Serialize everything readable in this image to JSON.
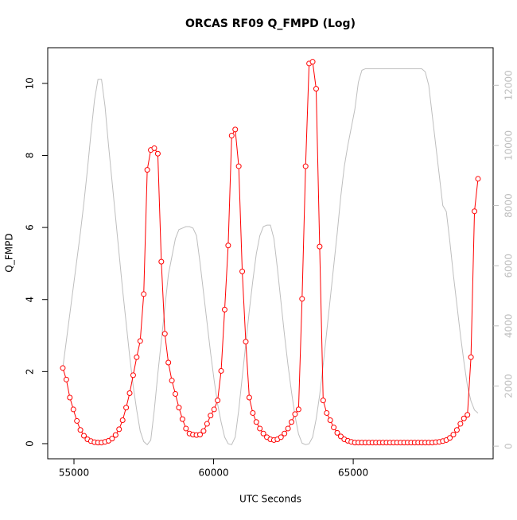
{
  "chart_data": {
    "type": "line",
    "title": "ORCAS RF09 Q_FMPD (Log)",
    "x_label": "UTC Seconds",
    "y_label": "Q_FMPD",
    "x": [
      54600,
      54726,
      54852,
      54978,
      55104,
      55230,
      55356,
      55482,
      55608,
      55734,
      55860,
      55986,
      56112,
      56238,
      56364,
      56490,
      56616,
      56742,
      56868,
      56994,
      57120,
      57246,
      57372,
      57498,
      57624,
      57750,
      57876,
      58002,
      58128,
      58254,
      58380,
      58506,
      58632,
      58758,
      58884,
      59010,
      59136,
      59262,
      59388,
      59514,
      59640,
      59766,
      59892,
      60018,
      60144,
      60270,
      60396,
      60522,
      60648,
      60774,
      60900,
      61026,
      61152,
      61278,
      61404,
      61530,
      61656,
      61782,
      61908,
      62034,
      62160,
      62286,
      62412,
      62538,
      62664,
      62790,
      62916,
      63042,
      63168,
      63294,
      63420,
      63546,
      63672,
      63798,
      63924,
      64050,
      64176,
      64302,
      64428,
      64554,
      64680,
      64806,
      64932,
      65058,
      65184,
      65310,
      65436,
      65562,
      65688,
      65814,
      65940,
      66066,
      66192,
      66318,
      66444,
      66570,
      66696,
      66822,
      66948,
      67074,
      67200,
      67326,
      67452,
      67578,
      67704,
      67830,
      67956,
      68082,
      68208,
      68334,
      68460,
      68586,
      68712,
      68838,
      68964,
      69090,
      69216,
      69342,
      69468
    ],
    "series": [
      {
        "color": "#ff0000",
        "markers": true,
        "values": [
          2.1,
          1.78,
          1.28,
          0.95,
          0.63,
          0.38,
          0.22,
          0.12,
          0.07,
          0.04,
          0.03,
          0.03,
          0.05,
          0.08,
          0.14,
          0.24,
          0.4,
          0.65,
          1.0,
          1.4,
          1.9,
          2.4,
          2.85,
          4.15,
          7.6,
          8.15,
          8.2,
          8.05,
          5.05,
          3.05,
          2.25,
          1.75,
          1.38,
          1.0,
          0.68,
          0.42,
          0.28,
          0.25,
          0.24,
          0.25,
          0.35,
          0.55,
          0.78,
          0.95,
          1.2,
          2.02,
          3.72,
          5.5,
          8.55,
          8.72,
          7.7,
          4.78,
          2.83,
          1.28,
          0.85,
          0.6,
          0.42,
          0.28,
          0.18,
          0.12,
          0.1,
          0.12,
          0.18,
          0.28,
          0.42,
          0.6,
          0.82,
          0.95,
          4.02,
          7.7,
          10.55,
          10.6,
          9.85,
          5.47,
          1.2,
          0.85,
          0.65,
          0.45,
          0.3,
          0.2,
          0.12,
          0.08,
          0.05,
          0.03,
          0.03,
          0.03,
          0.03,
          0.03,
          0.03,
          0.03,
          0.03,
          0.03,
          0.03,
          0.03,
          0.03,
          0.03,
          0.03,
          0.03,
          0.03,
          0.03,
          0.03,
          0.03,
          0.03,
          0.03,
          0.03,
          0.03,
          0.04,
          0.05,
          0.07,
          0.1,
          0.16,
          0.25,
          0.38,
          0.55,
          0.7,
          0.8,
          2.4,
          6.45,
          7.35
        ]
      },
      {
        "color": "#bebebe",
        "axis": "y2",
        "markers": false,
        "values": [
          2600,
          3500,
          4400,
          5300,
          6200,
          7100,
          8100,
          9200,
          10400,
          11500,
          12200,
          12200,
          11300,
          10000,
          8800,
          7600,
          6400,
          5200,
          4100,
          3000,
          2000,
          1200,
          500,
          150,
          50,
          200,
          1200,
          2400,
          3500,
          4600,
          5700,
          6300,
          6900,
          7200,
          7250,
          7300,
          7300,
          7250,
          7000,
          6100,
          5100,
          4100,
          3100,
          2200,
          1400,
          800,
          300,
          80,
          50,
          300,
          1200,
          2300,
          3400,
          4500,
          5500,
          6400,
          7000,
          7300,
          7350,
          7350,
          6900,
          5900,
          4800,
          3700,
          2700,
          1800,
          1000,
          400,
          100,
          50,
          80,
          300,
          900,
          1700,
          2700,
          3800,
          4900,
          6000,
          7100,
          8300,
          9300,
          10000,
          10600,
          11200,
          12100,
          12500,
          12550,
          12550,
          12550,
          12550,
          12550,
          12550,
          12550,
          12550,
          12550,
          12550,
          12550,
          12550,
          12550,
          12550,
          12550,
          12550,
          12550,
          12450,
          12000,
          11000,
          10000,
          9000,
          8000,
          7800,
          6800,
          5700,
          4700,
          3700,
          2800,
          2000,
          1500,
          1200,
          1100
        ]
      }
    ],
    "xlim": [
      54060,
      70010
    ],
    "xticks": [
      55000,
      60000,
      65000
    ],
    "ylim": [
      -0.42,
      10.99
    ],
    "yticks": [
      0,
      2,
      4,
      6,
      8,
      10
    ],
    "y2lim": [
      -420,
      13250
    ],
    "y2ticks": [
      0,
      2000,
      4000,
      6000,
      8000,
      10000,
      12000
    ]
  }
}
